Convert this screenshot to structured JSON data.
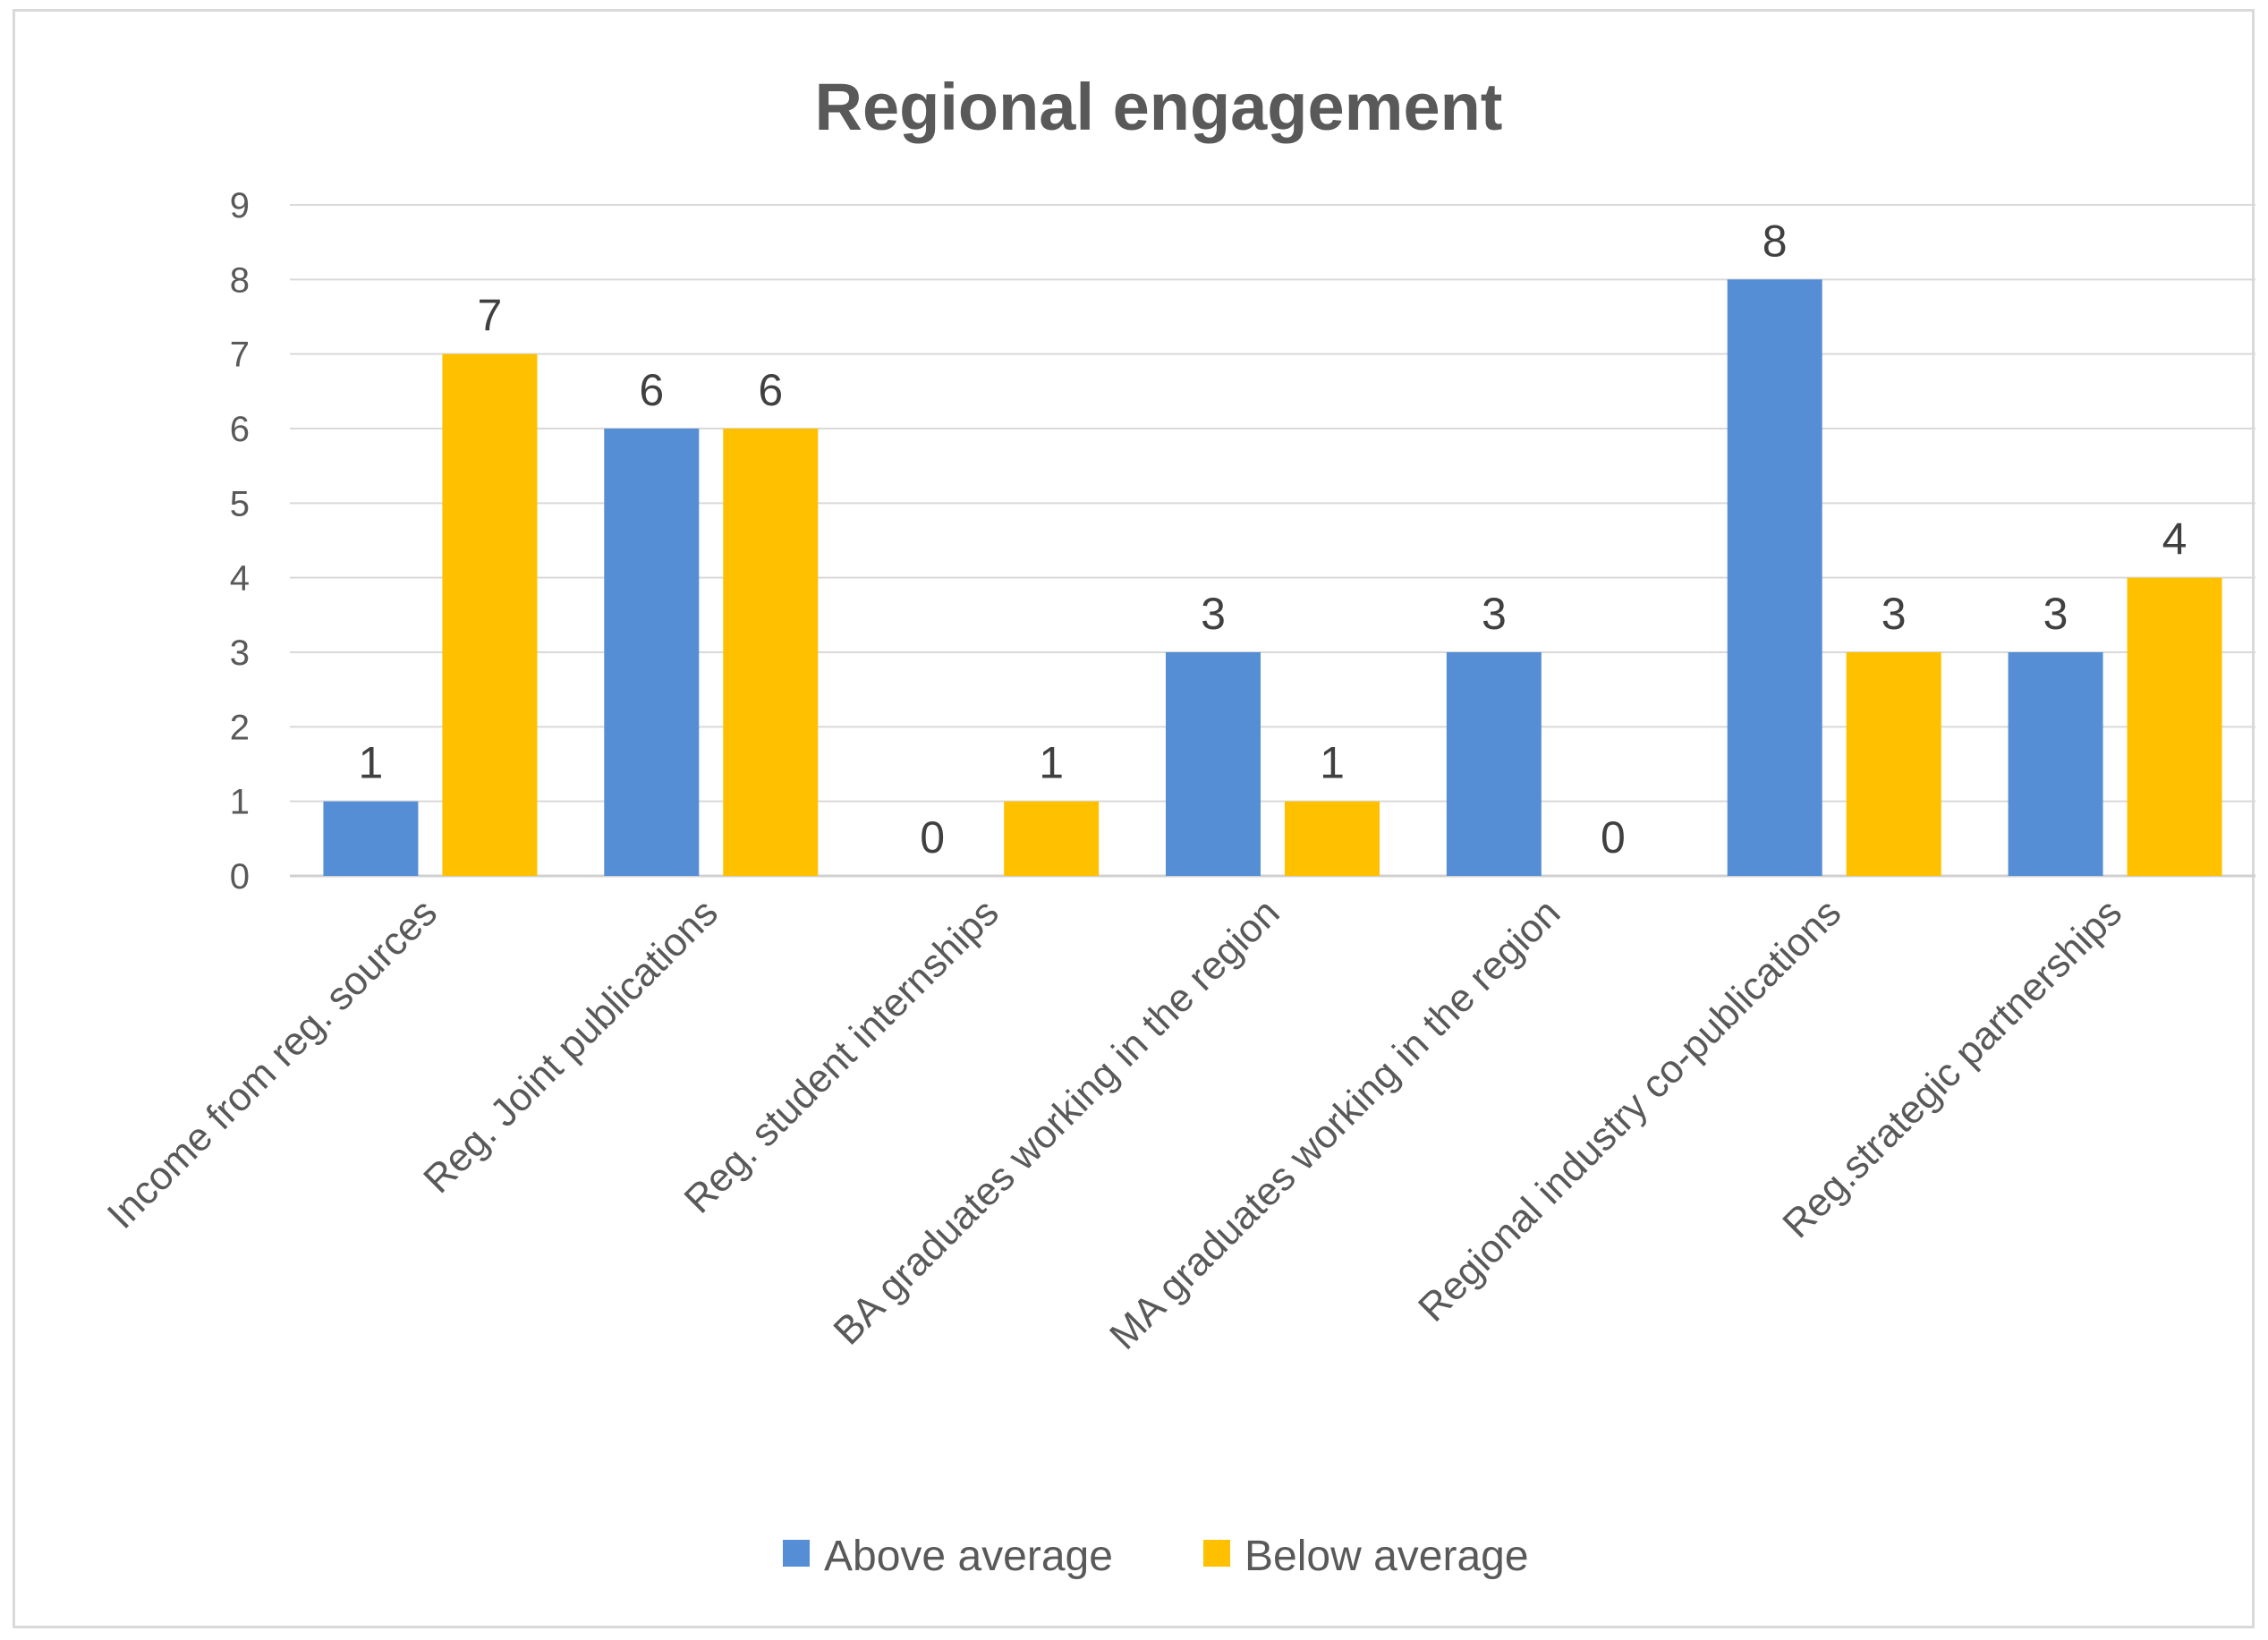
{
  "chart_data": {
    "type": "bar",
    "title": "Regional engagement",
    "xlabel": "",
    "ylabel": "",
    "categories": [
      "Income from reg. sources",
      "Reg. Joint publications",
      "Reg. student internships",
      "BA graduates working in the region",
      "MA graduates working in the region",
      "Regional industry co-publications",
      "Reg.strategic partnerships"
    ],
    "series": [
      {
        "name": "Above average",
        "color": "#558ed5",
        "values": [
          1,
          6,
          0,
          3,
          3,
          8,
          3
        ]
      },
      {
        "name": "Below average",
        "color": "#ffc000",
        "values": [
          7,
          6,
          1,
          1,
          0,
          3,
          4
        ]
      }
    ],
    "ylim": [
      0,
      9
    ],
    "yticks": [
      0,
      1,
      2,
      3,
      4,
      5,
      6,
      7,
      8,
      9
    ],
    "grid": true,
    "data_labels": true,
    "legend_position": "bottom"
  }
}
